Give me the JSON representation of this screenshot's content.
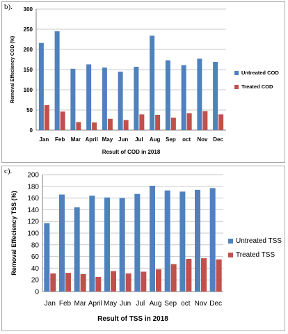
{
  "panels": [
    {
      "label": "b)."
    },
    {
      "label": "c)."
    }
  ],
  "colors": {
    "untreated": "#4F81BD",
    "treated": "#C0504D",
    "grid": "#c8c8c8",
    "axis": "#808080"
  },
  "chart_data": [
    {
      "type": "bar",
      "categories": [
        "Jan",
        "Feb",
        "Mar",
        "April",
        "May",
        "Jun",
        "Jul",
        "Aug",
        "Sep",
        "oct",
        "Nov",
        "Dec"
      ],
      "series": [
        {
          "name": "Untreated COD",
          "values": [
            216,
            245,
            152,
            163,
            155,
            145,
            157,
            234,
            173,
            161,
            177,
            169
          ]
        },
        {
          "name": "Treated COD",
          "values": [
            62,
            46,
            20,
            19,
            28,
            25,
            39,
            38,
            31,
            42,
            47,
            39
          ]
        }
      ],
      "xlabel": "Result of COD in 2018",
      "ylabel": "Removal Effeciency COD (%)",
      "ylim": [
        0,
        300
      ],
      "yticks": [
        0,
        50,
        100,
        150,
        200,
        250,
        300
      ],
      "grid": true,
      "legend": "right"
    },
    {
      "type": "bar",
      "categories": [
        "Jan",
        "Feb",
        "Mar",
        "April",
        "May",
        "Jun",
        "Jul",
        "Aug",
        "Sep",
        "oct",
        "Nov",
        "Dec"
      ],
      "series": [
        {
          "name": "Untreated TSS",
          "values": [
            117,
            166,
            144,
            164,
            161,
            160,
            167,
            181,
            173,
            171,
            174,
            177
          ]
        },
        {
          "name": "Treated TSS",
          "values": [
            31,
            32,
            30,
            25,
            35,
            31,
            34,
            38,
            47,
            56,
            57,
            55
          ]
        }
      ],
      "xlabel": "Result of TSS in 2018",
      "ylabel": "Removal Effeciency TSS (%)",
      "ylim": [
        0,
        200
      ],
      "yticks": [
        0,
        20,
        40,
        60,
        80,
        100,
        120,
        140,
        160,
        180,
        200
      ],
      "grid": true,
      "legend": "right"
    }
  ]
}
